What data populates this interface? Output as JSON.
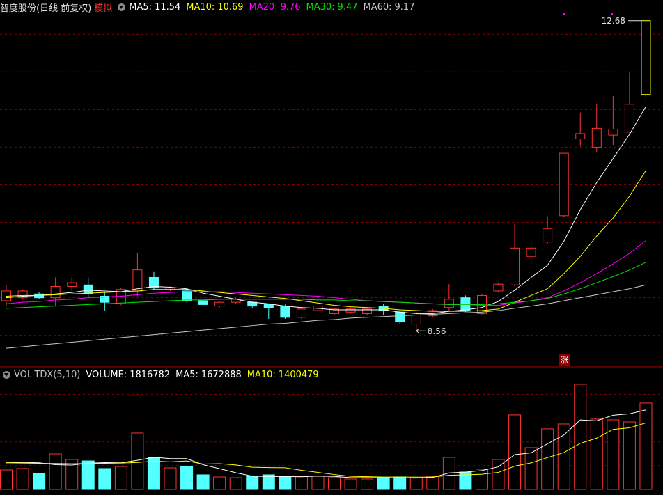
{
  "chart_data": [
    {
      "type": "candlestick",
      "title": "智度股份(日线 前复权)",
      "mode": "模拟",
      "open": [
        8.96,
        9.0,
        9.05,
        9.0,
        9.15,
        9.17,
        9.02,
        8.92,
        9.09,
        9.27,
        9.11,
        9.09,
        8.96,
        8.89,
        8.94,
        8.94,
        8.91,
        8.89,
        8.74,
        8.83,
        8.79,
        8.81,
        8.79,
        8.89,
        8.81,
        8.65,
        8.76,
        8.87,
        9.0,
        8.79,
        9.09,
        9.17,
        9.55,
        9.74,
        10.09,
        11.11,
        11.0,
        11.16,
        11.2,
        11.7
      ],
      "high": [
        9.17,
        9.11,
        9.07,
        9.27,
        9.27,
        9.27,
        9.07,
        9.13,
        9.59,
        9.35,
        9.15,
        9.11,
        9.03,
        8.96,
        9.0,
        8.96,
        8.91,
        8.91,
        8.87,
        8.91,
        8.87,
        8.87,
        8.87,
        8.92,
        8.83,
        8.81,
        8.85,
        9.18,
        9.03,
        9.05,
        9.2,
        9.98,
        9.77,
        10.07,
        10.92,
        11.46,
        11.57,
        11.68,
        11.99,
        12.68
      ],
      "low": [
        8.89,
        8.98,
        8.98,
        8.89,
        9.09,
        9.0,
        8.83,
        8.9,
        9.02,
        9.11,
        9.09,
        8.94,
        8.89,
        8.87,
        8.92,
        8.87,
        8.72,
        8.72,
        8.72,
        8.81,
        8.77,
        8.79,
        8.77,
        8.77,
        8.65,
        8.56,
        8.74,
        8.83,
        8.81,
        8.77,
        9.07,
        9.15,
        9.44,
        9.72,
        10.07,
        11.01,
        10.94,
        11.03,
        11.18,
        11.61
      ],
      "close": [
        9.09,
        9.09,
        9.0,
        9.15,
        9.2,
        9.05,
        8.94,
        9.11,
        9.37,
        9.13,
        9.13,
        8.96,
        8.91,
        8.94,
        8.98,
        8.89,
        8.87,
        8.74,
        8.85,
        8.89,
        8.85,
        8.85,
        8.85,
        8.83,
        8.68,
        8.77,
        8.83,
        8.98,
        8.83,
        9.03,
        9.18,
        9.66,
        9.66,
        9.92,
        10.92,
        11.18,
        11.25,
        11.24,
        11.57,
        12.68
      ],
      "up_color": "#ff3232",
      "down_color": "#54ffff",
      "last_color": "#ffff00",
      "grid_color": "#8b0000",
      "ylim": [
        8.1,
        12.77
      ],
      "yticks": [
        8.5,
        9,
        9.5,
        10,
        10.5,
        11,
        11.5,
        12,
        12.5
      ],
      "max_label": 12.68,
      "min_label": 8.56,
      "badge": "涨",
      "series": [
        {
          "name": "MA5:",
          "color": "#ffffff",
          "values": [
            9.0,
            9.02,
            9.03,
            9.05,
            9.07,
            9.1,
            9.09,
            9.08,
            9.12,
            9.15,
            9.14,
            9.12,
            9.06,
            9.02,
            8.98,
            8.94,
            8.92,
            8.89,
            8.87,
            8.86,
            8.84,
            8.84,
            8.84,
            8.84,
            8.81,
            8.79,
            8.79,
            8.82,
            8.84,
            8.87,
            8.95,
            9.1,
            9.27,
            9.43,
            9.75,
            10.17,
            10.53,
            10.85,
            11.17,
            11.54
          ]
        },
        {
          "name": "MA10:",
          "color": "#ffff00",
          "values": [
            9.02,
            9.03,
            9.03,
            9.04,
            9.05,
            9.06,
            9.07,
            9.08,
            9.09,
            9.11,
            9.11,
            9.11,
            9.09,
            9.07,
            9.05,
            9.03,
            9.01,
            8.99,
            8.96,
            8.93,
            8.9,
            8.88,
            8.87,
            8.86,
            8.84,
            8.83,
            8.82,
            8.82,
            8.82,
            8.83,
            8.85,
            8.94,
            9.03,
            9.12,
            9.32,
            9.55,
            9.82,
            10.06,
            10.35,
            10.69
          ]
        },
        {
          "name": "MA20:",
          "color": "#ff00ff",
          "values": [
            8.92,
            8.94,
            8.95,
            8.97,
            8.98,
            9.0,
            9.01,
            9.02,
            9.04,
            9.06,
            9.07,
            9.08,
            9.08,
            9.08,
            9.07,
            9.06,
            9.05,
            9.04,
            9.03,
            9.02,
            9.0,
            8.98,
            8.96,
            8.95,
            8.94,
            8.93,
            8.92,
            8.91,
            8.91,
            8.9,
            8.9,
            8.93,
            8.96,
            9.0,
            9.09,
            9.2,
            9.32,
            9.45,
            9.59,
            9.76
          ]
        },
        {
          "name": "MA30:",
          "color": "#00e600",
          "values": [
            8.86,
            8.87,
            8.88,
            8.89,
            8.9,
            8.91,
            8.92,
            8.93,
            8.94,
            8.95,
            8.96,
            8.97,
            8.97,
            8.98,
            8.98,
            8.98,
            8.98,
            8.98,
            8.98,
            8.97,
            8.97,
            8.96,
            8.96,
            8.95,
            8.94,
            8.93,
            8.92,
            8.91,
            8.91,
            8.91,
            8.92,
            8.94,
            8.96,
            8.99,
            9.05,
            9.12,
            9.2,
            9.28,
            9.37,
            9.47
          ]
        },
        {
          "name": "MA60:",
          "color": "#c8c8c8",
          "values": [
            8.33,
            8.35,
            8.37,
            8.39,
            8.41,
            8.43,
            8.45,
            8.47,
            8.49,
            8.51,
            8.53,
            8.55,
            8.57,
            8.59,
            8.61,
            8.63,
            8.65,
            8.66,
            8.68,
            8.7,
            8.71,
            8.73,
            8.74,
            8.75,
            8.76,
            8.77,
            8.78,
            8.79,
            8.8,
            8.81,
            8.83,
            8.86,
            8.89,
            8.92,
            8.96,
            9.0,
            9.04,
            9.08,
            9.12,
            9.17
          ]
        }
      ]
    },
    {
      "type": "bar",
      "title": "VOL-TDX(5,10)",
      "ylim": [
        0,
        2270000
      ],
      "yticks": [
        500000,
        1000000,
        1500000,
        2000000
      ],
      "series": [
        {
          "name": "VOLUME:",
          "color": "#ffffff",
          "values": [
            410000,
            440000,
            337000,
            747000,
            630000,
            600000,
            440000,
            483000,
            1187000,
            674000,
            454000,
            483000,
            308000,
            264000,
            249000,
            278000,
            308000,
            264000,
            278000,
            278000,
            249000,
            220000,
            220000,
            249000,
            264000,
            249000,
            278000,
            674000,
            366000,
            425000,
            630000,
            1568000,
            879000,
            1275000,
            1377000,
            2212000,
            1480000,
            1465000,
            1421000,
            1816782
          ]
        },
        {
          "name": "MA5:",
          "color": "#ffffff",
          "values": [
            560000,
            570000,
            560000,
            520000,
            513000,
            551000,
            563000,
            560000,
            614000,
            677000,
            648000,
            648000,
            520000,
            437000,
            352000,
            280000,
            273000,
            273000,
            267000,
            281000,
            275000,
            249000,
            249000,
            243000,
            244000,
            240000,
            252000,
            347000,
            366000,
            398000,
            475000,
            733000,
            768000,
            960000,
            1146000,
            1462000,
            1445000,
            1562000,
            1591000,
            1672888
          ]
        },
        {
          "name": "MA10:",
          "color": "#ffff00",
          "values": [
            560000,
            555000,
            550000,
            545000,
            540000,
            545000,
            550000,
            555000,
            567000,
            595000,
            580000,
            598000,
            535000,
            542000,
            515000,
            466000,
            460000,
            456000,
            402000,
            359000,
            314000,
            276000,
            270000,
            262000,
            262000,
            260000,
            262000,
            298000,
            307000,
            321000,
            358000,
            490000,
            558000,
            670000,
            775000,
            969000,
            1080000,
            1264000,
            1296000,
            1400479
          ]
        }
      ]
    }
  ]
}
